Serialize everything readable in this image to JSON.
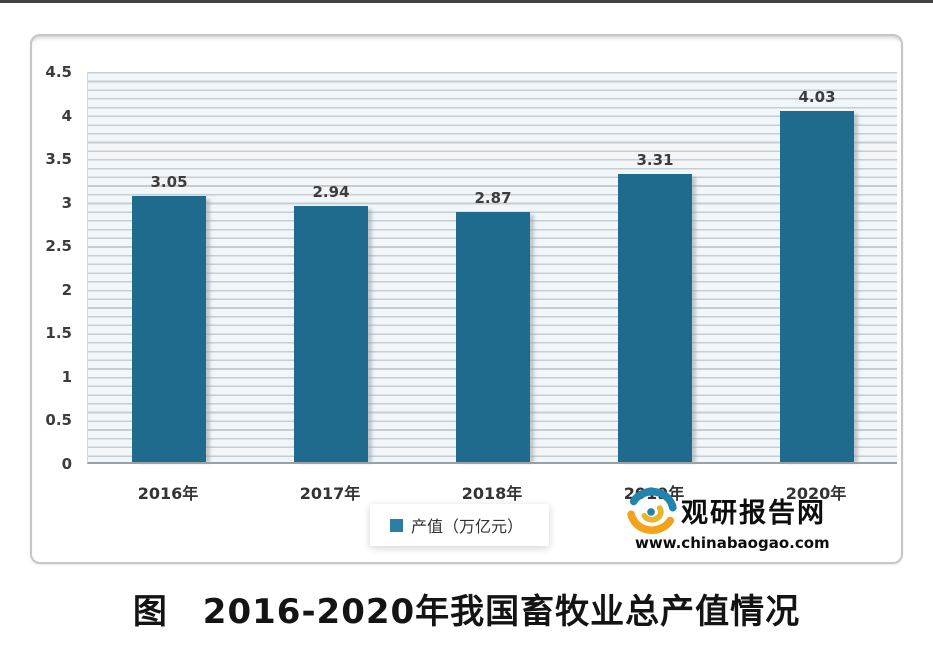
{
  "figure_title": "图　2016-2020年我国畜牧业总产值情况",
  "legend": {
    "label": "产值（万亿元）"
  },
  "watermark": {
    "brand": "观研报告网",
    "url": "www.chinabaogao.com"
  },
  "colors": {
    "bar": "#1f6b8d",
    "legend_marker": "#2e7da4",
    "value_label": "#3d3d3d",
    "axis_line": "#98a1a8",
    "grid_stripe": "#c4cdd4",
    "logo_orange": "#f2a31b",
    "logo_gold": "#e8b62a",
    "logo_teal": "#2283ad"
  },
  "chart_data": {
    "type": "bar",
    "title": "图　2016-2020年我国畜牧业总产值情况",
    "categories": [
      "2016年",
      "2017年",
      "2018年",
      "2019年",
      "2020年"
    ],
    "values": [
      3.05,
      2.94,
      2.87,
      3.31,
      4.03
    ],
    "value_labels": [
      "3.05",
      "2.94",
      "2.87",
      "3.31",
      "4.03"
    ],
    "series_name": "产值（万亿元）",
    "xlabel": "",
    "ylabel": "",
    "ylim": [
      0,
      4.5
    ],
    "yticks": [
      0,
      0.5,
      1,
      1.5,
      2,
      2.5,
      3,
      3.5,
      4,
      4.5
    ],
    "grid": "fine horizontal stripes every 0.1 units",
    "legend_position": "bottom-center"
  }
}
